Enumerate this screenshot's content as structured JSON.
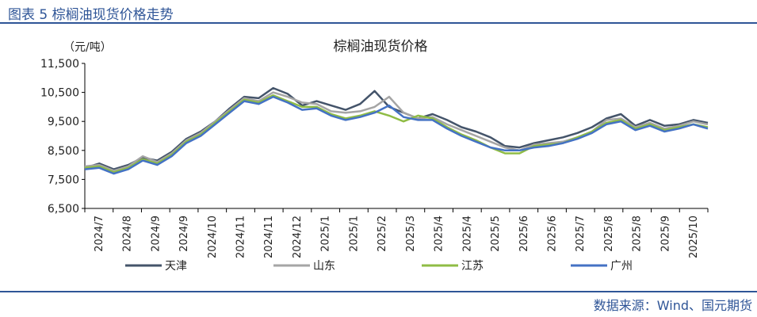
{
  "figure_title": "图表 5 棕榈油现货价格走势",
  "source": "数据来源：Wind、国元期货",
  "colors": {
    "tianjin": "#44546a",
    "shandong": "#a5a5a5",
    "jiangsu": "#8fbc45",
    "guangzhou": "#4472c4",
    "header": "#2f5597"
  },
  "chart_data": {
    "type": "line",
    "title": "棕榈油现货价格",
    "unit_label": "（元/吨）",
    "ylim": [
      6500,
      11500
    ],
    "y_ticks": [
      "6,500",
      "7,500",
      "8,500",
      "9,500",
      "10,500",
      "11,500"
    ],
    "y_tick_values": [
      6500,
      7500,
      8500,
      9500,
      10500,
      11500
    ],
    "x_tick_labels": [
      "2024/7",
      "2024/8",
      "2024/9",
      "2024/9",
      "2024/10",
      "2024/11",
      "2024/11",
      "2024/12",
      "2025/1",
      "2025/1",
      "2025/2",
      "2025/3",
      "2025/4",
      "2025/4",
      "2025/5",
      "2025/6",
      "2025/6",
      "2025/7",
      "2025/8",
      "2025/8",
      "2025/9",
      "2025/10"
    ],
    "grid": false,
    "legend_position": "bottom",
    "series": [
      {
        "name": "天津",
        "key": "tianjin",
        "values": [
          7900,
          8050,
          7850,
          8000,
          8250,
          8150,
          8450,
          8900,
          9150,
          9500,
          9950,
          10350,
          10300,
          10650,
          10450,
          10050,
          10200,
          10050,
          9900,
          10100,
          10550,
          10000,
          9800,
          9600,
          9750,
          9550,
          9300,
          9150,
          8950,
          8650,
          8600,
          8750,
          8850,
          8950,
          9100,
          9300,
          9600,
          9750,
          9350,
          9550,
          9350,
          9400,
          9550,
          9450
        ]
      },
      {
        "name": "山东",
        "key": "shandong",
        "values": [
          7950,
          8000,
          7800,
          7950,
          8300,
          8100,
          8400,
          8850,
          9100,
          9500,
          9900,
          10300,
          10200,
          10500,
          10350,
          10150,
          10100,
          9850,
          9800,
          9850,
          10000,
          10350,
          9800,
          9600,
          9650,
          9400,
          9200,
          9000,
          8800,
          8600,
          8500,
          8700,
          8750,
          8800,
          8950,
          9150,
          9550,
          9600,
          9300,
          9450,
          9250,
          9350,
          9500,
          9400
        ]
      },
      {
        "name": "江苏",
        "key": "jiangsu",
        "values": [
          7900,
          7950,
          7750,
          7900,
          8200,
          8050,
          8350,
          8800,
          9050,
          9450,
          9850,
          10250,
          10150,
          10400,
          10200,
          10000,
          10000,
          9750,
          9600,
          9700,
          9850,
          9700,
          9500,
          9700,
          9600,
          9300,
          9050,
          8850,
          8600,
          8400,
          8400,
          8650,
          8700,
          8750,
          8950,
          9150,
          9450,
          9550,
          9250,
          9400,
          9200,
          9300,
          9400,
          9300
        ]
      },
      {
        "name": "广州",
        "key": "guangzhou",
        "values": [
          7850,
          7900,
          7700,
          7850,
          8150,
          8000,
          8300,
          8750,
          9000,
          9400,
          9800,
          10200,
          10100,
          10350,
          10150,
          9900,
          9950,
          9700,
          9550,
          9650,
          9800,
          10050,
          9650,
          9550,
          9550,
          9250,
          9000,
          8800,
          8600,
          8500,
          8500,
          8600,
          8650,
          8750,
          8900,
          9100,
          9400,
          9500,
          9200,
          9350,
          9150,
          9250,
          9400,
          9250
        ]
      }
    ]
  }
}
